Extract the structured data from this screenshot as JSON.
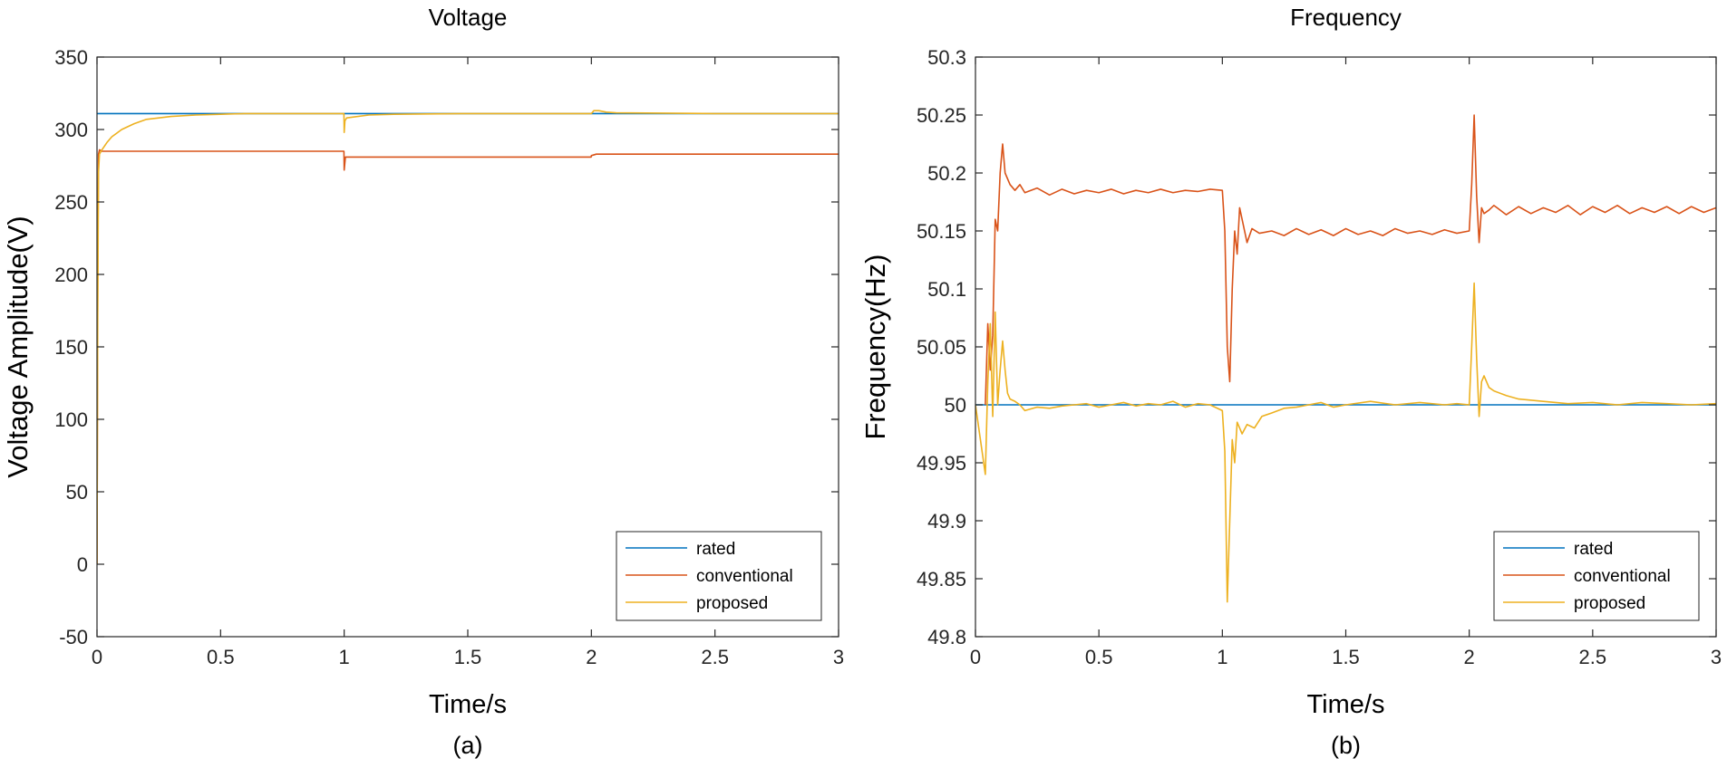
{
  "chart_data": [
    {
      "type": "line",
      "panel": "a",
      "title": "Voltage",
      "xlabel": "Time/s",
      "ylabel": "Voltage Amplitude(V)",
      "caption": "(a)",
      "xlim": [
        0,
        3
      ],
      "ylim": [
        -50,
        350
      ],
      "xticks": [
        0,
        0.5,
        1,
        1.5,
        2,
        2.5,
        3
      ],
      "xtick_labels": [
        "0",
        "0.5",
        "1",
        "1.5",
        "2",
        "2.5",
        "3"
      ],
      "yticks": [
        -50,
        0,
        50,
        100,
        150,
        200,
        250,
        300,
        350
      ],
      "ytick_labels": [
        "-50",
        "0",
        "50",
        "100",
        "150",
        "200",
        "250",
        "300",
        "350"
      ],
      "legend_position": "bottom-right",
      "series": [
        {
          "name": "rated",
          "color": "#0072BD",
          "x": [
            0,
            3
          ],
          "y": [
            311,
            311
          ]
        },
        {
          "name": "conventional",
          "color": "#D95319",
          "x": [
            0,
            0.003,
            0.006,
            0.01,
            0.02,
            0.05,
            0.1,
            0.5,
            0.999,
            1.0,
            1.005,
            1.01,
            1.02,
            1.5,
            1.999,
            2.0,
            2.02,
            2.5,
            3.0
          ],
          "y": [
            0,
            200,
            283,
            286,
            285,
            285,
            285,
            285,
            285,
            272,
            281,
            281,
            281,
            281,
            281,
            282,
            283,
            283,
            283
          ]
        },
        {
          "name": "proposed",
          "color": "#EDB120",
          "x": [
            0,
            0.003,
            0.006,
            0.01,
            0.02,
            0.04,
            0.06,
            0.1,
            0.15,
            0.2,
            0.3,
            0.4,
            0.5,
            0.6,
            0.8,
            0.999,
            1.0,
            1.003,
            1.01,
            1.1,
            1.2,
            1.5,
            1.999,
            2.0,
            2.01,
            2.03,
            2.06,
            2.1,
            2.5,
            3.0
          ],
          "y": [
            0,
            170,
            270,
            283,
            286,
            291,
            295,
            300,
            304,
            307,
            309,
            310,
            310.5,
            311,
            311,
            311,
            298,
            306,
            308,
            310,
            310.5,
            311,
            311,
            311,
            313,
            313,
            312,
            311.5,
            311,
            311
          ]
        }
      ]
    },
    {
      "type": "line",
      "panel": "b",
      "title": "Frequency",
      "xlabel": "Time/s",
      "ylabel": "Frequency(Hz)",
      "caption": "(b)",
      "xlim": [
        0,
        3
      ],
      "ylim": [
        49.8,
        50.3
      ],
      "xticks": [
        0,
        0.5,
        1,
        1.5,
        2,
        2.5,
        3
      ],
      "xtick_labels": [
        "0",
        "0.5",
        "1",
        "1.5",
        "2",
        "2.5",
        "3"
      ],
      "yticks": [
        49.8,
        49.85,
        49.9,
        49.95,
        50,
        50.05,
        50.1,
        50.15,
        50.2,
        50.25,
        50.3
      ],
      "ytick_labels": [
        "49.8",
        "49.85",
        "49.9",
        "49.95",
        "50",
        "50.05",
        "50.1",
        "50.15",
        "50.2",
        "50.25",
        "50.3"
      ],
      "legend_position": "bottom-right",
      "series": [
        {
          "name": "rated",
          "color": "#0072BD",
          "x": [
            0,
            3
          ],
          "y": [
            50,
            50
          ]
        },
        {
          "name": "conventional",
          "color": "#D95319",
          "x": [
            0.04,
            0.05,
            0.06,
            0.07,
            0.08,
            0.09,
            0.1,
            0.11,
            0.12,
            0.14,
            0.16,
            0.18,
            0.2,
            0.25,
            0.3,
            0.35,
            0.4,
            0.45,
            0.5,
            0.55,
            0.6,
            0.65,
            0.7,
            0.75,
            0.8,
            0.85,
            0.9,
            0.95,
            1.0,
            1.01,
            1.02,
            1.03,
            1.04,
            1.05,
            1.06,
            1.07,
            1.08,
            1.1,
            1.12,
            1.15,
            1.2,
            1.25,
            1.3,
            1.35,
            1.4,
            1.45,
            1.5,
            1.55,
            1.6,
            1.65,
            1.7,
            1.75,
            1.8,
            1.85,
            1.9,
            1.95,
            2.0,
            2.01,
            2.02,
            2.03,
            2.04,
            2.05,
            2.06,
            2.08,
            2.1,
            2.15,
            2.2,
            2.25,
            2.3,
            2.35,
            2.4,
            2.45,
            2.5,
            2.55,
            2.6,
            2.65,
            2.7,
            2.75,
            2.8,
            2.85,
            2.9,
            2.95,
            3.0
          ],
          "y": [
            50.0,
            50.07,
            50.03,
            50.06,
            50.16,
            50.15,
            50.2,
            50.225,
            50.2,
            50.19,
            50.185,
            50.19,
            50.183,
            50.187,
            50.181,
            50.186,
            50.182,
            50.185,
            50.183,
            50.186,
            50.182,
            50.185,
            50.183,
            50.186,
            50.183,
            50.185,
            50.184,
            50.186,
            50.185,
            50.15,
            50.05,
            50.02,
            50.1,
            50.15,
            50.13,
            50.17,
            50.16,
            50.14,
            50.152,
            50.148,
            50.15,
            50.146,
            50.152,
            50.147,
            50.151,
            50.146,
            50.152,
            50.147,
            50.15,
            50.146,
            50.152,
            50.148,
            50.15,
            50.147,
            50.151,
            50.148,
            50.15,
            50.19,
            50.25,
            50.18,
            50.14,
            50.17,
            50.165,
            50.168,
            50.172,
            50.164,
            50.171,
            50.165,
            50.17,
            50.166,
            50.172,
            50.164,
            50.171,
            50.166,
            50.172,
            50.165,
            50.17,
            50.166,
            50.171,
            50.165,
            50.171,
            50.166,
            50.17
          ]
        },
        {
          "name": "proposed",
          "color": "#EDB120",
          "x": [
            0.0,
            0.02,
            0.04,
            0.05,
            0.06,
            0.07,
            0.08,
            0.09,
            0.1,
            0.11,
            0.12,
            0.13,
            0.14,
            0.16,
            0.18,
            0.2,
            0.25,
            0.3,
            0.35,
            0.4,
            0.45,
            0.5,
            0.55,
            0.6,
            0.65,
            0.7,
            0.75,
            0.8,
            0.85,
            0.9,
            0.95,
            1.0,
            1.01,
            1.02,
            1.03,
            1.04,
            1.05,
            1.06,
            1.07,
            1.08,
            1.1,
            1.13,
            1.16,
            1.2,
            1.25,
            1.3,
            1.35,
            1.4,
            1.45,
            1.5,
            1.6,
            1.7,
            1.8,
            1.9,
            1.95,
            2.0,
            2.01,
            2.02,
            2.03,
            2.04,
            2.05,
            2.06,
            2.08,
            2.1,
            2.15,
            2.2,
            2.3,
            2.4,
            2.5,
            2.6,
            2.7,
            2.8,
            2.9,
            3.0
          ],
          "y": [
            50.0,
            49.97,
            49.94,
            50.02,
            50.07,
            49.99,
            50.08,
            50.0,
            50.03,
            50.055,
            50.03,
            50.01,
            50.005,
            50.003,
            50.0,
            49.995,
            49.998,
            49.997,
            49.999,
            50.0,
            50.001,
            49.998,
            50.0,
            50.002,
            49.999,
            50.001,
            50.0,
            50.003,
            49.998,
            50.001,
            50.0,
            49.995,
            49.96,
            49.83,
            49.9,
            49.97,
            49.95,
            49.985,
            49.98,
            49.975,
            49.983,
            49.98,
            49.99,
            49.993,
            49.997,
            49.998,
            50.0,
            50.002,
            49.998,
            50.0,
            50.003,
            50.0,
            50.002,
            50.0,
            50.001,
            50.0,
            50.05,
            50.105,
            50.04,
            49.99,
            50.02,
            50.025,
            50.015,
            50.012,
            50.008,
            50.005,
            50.003,
            50.001,
            50.002,
            50.0,
            50.002,
            50.001,
            50.0,
            50.001
          ]
        }
      ]
    }
  ]
}
